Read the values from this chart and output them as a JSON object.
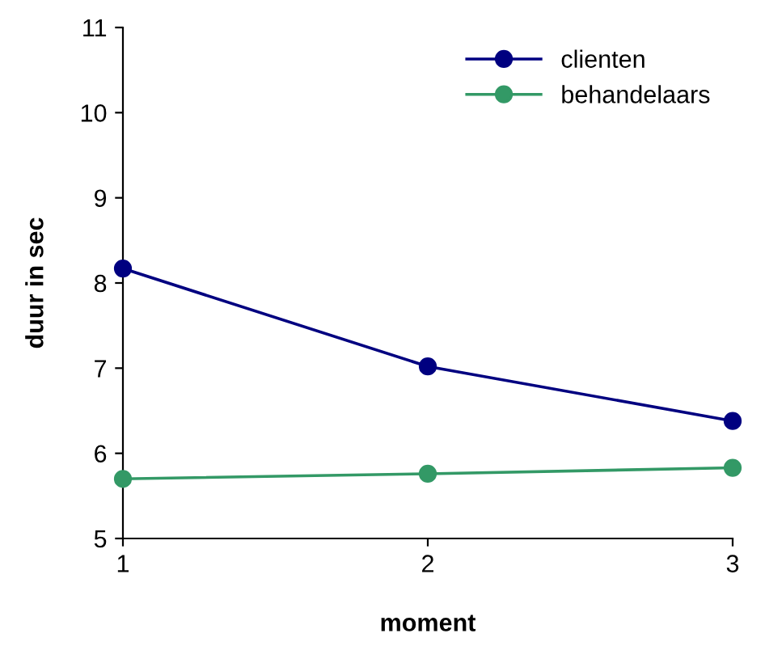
{
  "chart_data": {
    "type": "line",
    "xlabel": "moment",
    "ylabel": "duur in sec",
    "x": [
      1,
      2,
      3
    ],
    "series": [
      {
        "name": "clienten",
        "color": "#000080",
        "values": [
          8.17,
          7.02,
          6.38
        ]
      },
      {
        "name": "behandelaars",
        "color": "#339966",
        "values": [
          5.7,
          5.76,
          5.83
        ]
      }
    ],
    "xlim": [
      1,
      3
    ],
    "xticks": [
      1,
      2,
      3
    ],
    "ylim": [
      5,
      11
    ],
    "yticks": [
      5,
      6,
      7,
      8,
      9,
      10,
      11
    ],
    "grid": false,
    "legend": "top right",
    "marker": "circle",
    "line_style": "solid"
  }
}
